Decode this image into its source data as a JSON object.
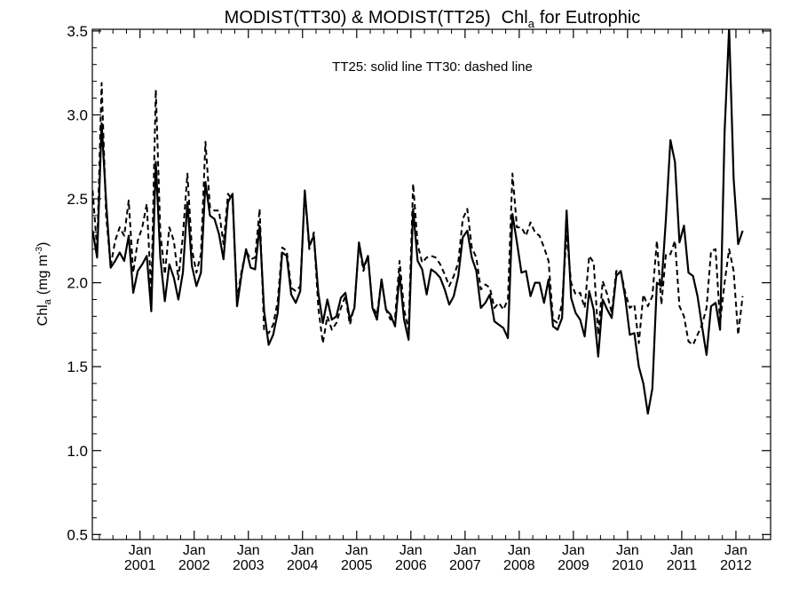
{
  "chart_data": {
    "type": "line",
    "title_main": "MODIST(TT30) & MODIST(TT25)",
    "title_chl": "Chl",
    "title_chl_sub": "a",
    "title_tail": "for Eutrophic",
    "annotation": "TT25: solid line   TT30: dashed line",
    "ylabel_main": "Chl",
    "ylabel_sub": "a",
    "ylabel_units": "(mg m",
    "ylabel_exp": "-3",
    "ylabel_close": ")",
    "ylim": [
      0.47,
      3.51
    ],
    "xlim": [
      2000.12,
      2012.64
    ],
    "yticks": [
      0.5,
      1.0,
      1.5,
      2.0,
      2.5,
      3.0,
      3.5
    ],
    "ytick_labels": [
      "0.5",
      "1.0",
      "1.5",
      "2.0",
      "2.5",
      "3.0",
      "3.5"
    ],
    "xticks": [
      2001.0,
      2002.0,
      2003.0,
      2004.0,
      2005.0,
      2006.0,
      2007.0,
      2008.0,
      2009.0,
      2010.0,
      2011.0,
      2012.0
    ],
    "xtick_month": "Jan",
    "xtick_years": [
      "2001",
      "2002",
      "2003",
      "2004",
      "2005",
      "2006",
      "2007",
      "2008",
      "2009",
      "2010",
      "2011",
      "2012"
    ],
    "x_start": 2000.125,
    "x_step": 0.08333,
    "series": [
      {
        "style": "solid",
        "values": [
          2.31,
          2.15,
          2.95,
          2.48,
          2.09,
          2.13,
          2.18,
          2.13,
          2.28,
          1.94,
          2.07,
          2.11,
          2.16,
          1.83,
          2.72,
          2.15,
          1.89,
          2.11,
          2.03,
          1.9,
          2.06,
          2.48,
          2.1,
          1.98,
          2.06,
          2.6,
          2.4,
          2.38,
          2.29,
          2.14,
          2.48,
          2.53,
          1.86,
          2.05,
          2.2,
          2.09,
          2.08,
          2.34,
          1.83,
          1.63,
          1.69,
          1.82,
          2.18,
          2.16,
          1.93,
          1.88,
          1.95,
          2.55,
          2.22,
          2.28,
          1.94,
          1.76,
          1.9,
          1.78,
          1.8,
          1.91,
          1.94,
          1.78,
          1.85,
          2.24,
          2.09,
          2.16,
          1.85,
          1.78,
          2.02,
          1.84,
          1.81,
          1.74,
          2.05,
          1.78,
          1.66,
          2.44,
          2.13,
          2.08,
          1.93,
          2.08,
          2.06,
          2.03,
          1.96,
          1.87,
          1.92,
          2.04,
          2.27,
          2.31,
          2.15,
          2.07,
          1.85,
          1.88,
          1.93,
          1.77,
          1.75,
          1.73,
          1.67,
          2.41,
          2.24,
          2.06,
          2.07,
          1.92,
          2.0,
          2.0,
          1.88,
          2.02,
          1.74,
          1.72,
          1.79,
          2.43,
          1.91,
          1.82,
          1.78,
          1.68,
          1.95,
          1.84,
          1.56,
          1.9,
          1.84,
          1.79,
          2.04,
          2.07,
          1.91,
          1.69,
          1.7,
          1.5,
          1.4,
          1.22,
          1.37,
          2.0,
          1.98,
          2.38,
          2.85,
          2.72,
          2.24,
          2.34,
          2.06,
          2.04,
          1.92,
          1.74,
          1.57,
          1.86,
          1.88,
          1.72,
          2.9,
          3.52,
          2.62,
          2.23,
          2.31
        ]
      },
      {
        "style": "dashed",
        "values": [
          2.55,
          2.2,
          3.19,
          2.4,
          2.1,
          2.25,
          2.33,
          2.28,
          2.49,
          2.06,
          2.25,
          2.33,
          2.47,
          1.93,
          3.15,
          2.3,
          2.05,
          2.33,
          2.25,
          2.02,
          2.28,
          2.65,
          2.2,
          2.06,
          2.17,
          2.84,
          2.45,
          2.43,
          2.43,
          2.23,
          2.53,
          2.49,
          1.9,
          2.07,
          2.19,
          2.14,
          2.15,
          2.44,
          1.71,
          1.7,
          1.75,
          1.89,
          2.21,
          2.19,
          1.97,
          1.95,
          1.98,
          2.54,
          2.2,
          2.3,
          1.85,
          1.64,
          1.8,
          1.72,
          1.76,
          1.85,
          1.92,
          1.75,
          1.86,
          2.23,
          2.07,
          2.16,
          1.86,
          1.81,
          2.02,
          1.84,
          1.78,
          1.79,
          2.13,
          1.84,
          1.72,
          2.59,
          2.23,
          2.12,
          2.15,
          2.16,
          2.15,
          2.11,
          2.05,
          1.98,
          2.04,
          2.12,
          2.38,
          2.44,
          2.21,
          2.15,
          1.96,
          1.99,
          1.97,
          1.85,
          1.88,
          1.84,
          1.9,
          2.65,
          2.33,
          2.33,
          2.28,
          2.36,
          2.3,
          2.28,
          2.21,
          2.13,
          1.78,
          1.76,
          1.88,
          2.29,
          2.0,
          1.93,
          1.94,
          1.85,
          2.16,
          2.12,
          1.69,
          2.01,
          1.93,
          1.82,
          2.07,
          2.07,
          1.94,
          1.85,
          1.87,
          1.64,
          1.93,
          1.86,
          1.92,
          2.25,
          1.87,
          2.17,
          2.17,
          2.25,
          1.86,
          1.8,
          1.65,
          1.63,
          1.69,
          1.75,
          1.85,
          2.19,
          2.2,
          1.76,
          2.0,
          2.2,
          2.07,
          1.69,
          1.92
        ]
      }
    ]
  }
}
